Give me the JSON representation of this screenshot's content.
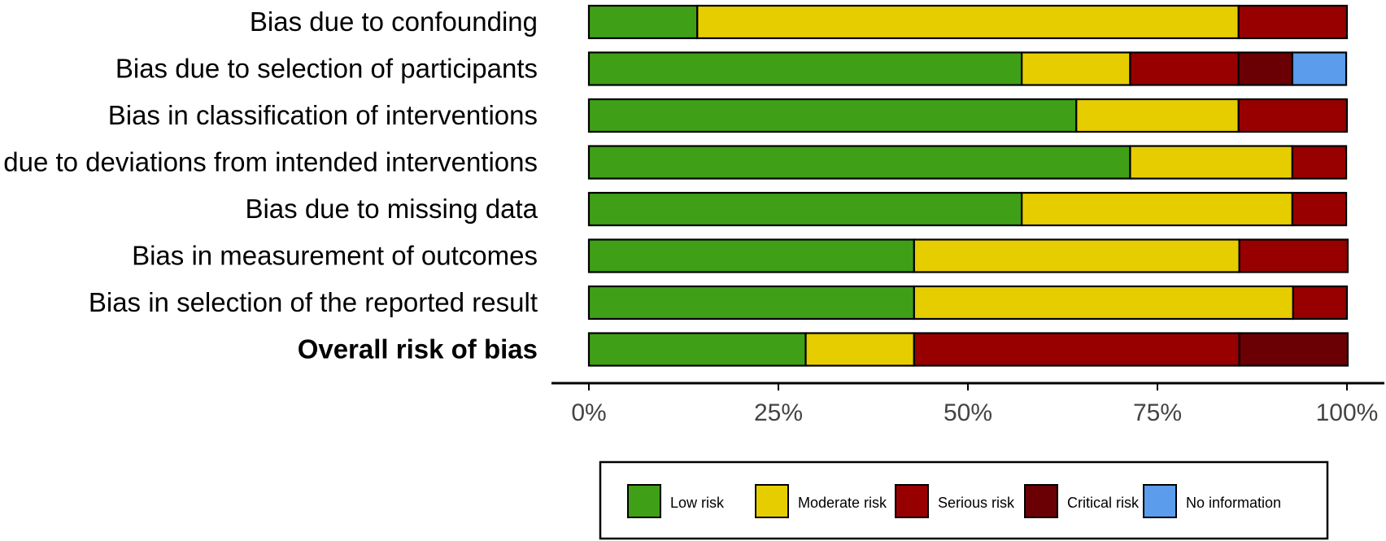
{
  "chart_data": {
    "type": "bar",
    "orientation": "horizontal",
    "stacked": true,
    "categories": [
      "Bias due to confounding",
      "Bias due to selection of participants",
      "Bias in classification of interventions",
      "Bias due to deviations from intended interventions",
      "Bias due to missing data",
      "Bias in measurement of outcomes",
      "Bias in selection of the reported result",
      "Overall risk of bias"
    ],
    "bold_categories": [
      "Overall risk of bias"
    ],
    "series": [
      {
        "name": "Low risk",
        "color": "#3f9f16",
        "values": [
          14.3,
          57.1,
          64.3,
          71.4,
          57.1,
          42.9,
          42.9,
          28.6
        ]
      },
      {
        "name": "Moderate risk",
        "color": "#e6cd00",
        "values": [
          71.4,
          14.3,
          21.4,
          21.4,
          35.7,
          42.9,
          50.0,
          14.3
        ]
      },
      {
        "name": "Serious risk",
        "color": "#980000",
        "values": [
          14.3,
          14.3,
          14.3,
          7.1,
          7.1,
          14.3,
          7.1,
          42.9
        ]
      },
      {
        "name": "Critical risk",
        "color": "#6b0004",
        "values": [
          0,
          7.1,
          0,
          0,
          0,
          0,
          0,
          14.3
        ]
      },
      {
        "name": "No information",
        "color": "#5b9cec",
        "values": [
          0,
          7.1,
          0,
          0,
          0,
          0,
          0,
          0
        ]
      }
    ],
    "x_ticks": [
      {
        "value": 0,
        "label": "0%"
      },
      {
        "value": 25,
        "label": "25%"
      },
      {
        "value": 50,
        "label": "50%"
      },
      {
        "value": 75,
        "label": "75%"
      },
      {
        "value": 100,
        "label": "100%"
      }
    ],
    "xlim": [
      0,
      100
    ],
    "grid": false,
    "legend_position": "bottom"
  }
}
